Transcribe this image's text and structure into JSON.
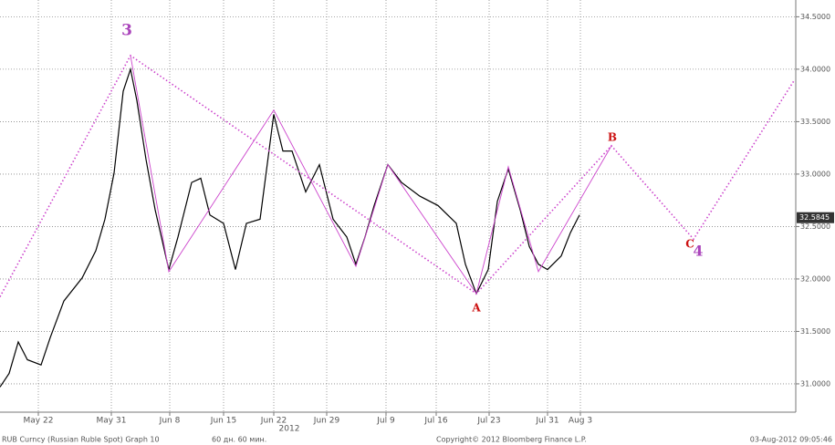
{
  "chart_data": {
    "type": "line",
    "xlim": [
      0,
      872
    ],
    "ylim": [
      30.73,
      34.66
    ],
    "xticks": [
      {
        "value": 42,
        "label": "May 22"
      },
      {
        "value": 122,
        "label": "May 31"
      },
      {
        "value": 186,
        "label": "Jun 8"
      },
      {
        "value": 245,
        "label": "Jun 15"
      },
      {
        "value": 300,
        "label": "Jun 22"
      },
      {
        "value": 358,
        "label": "Jun 29"
      },
      {
        "value": 423,
        "label": "Jul 9"
      },
      {
        "value": 478,
        "label": "Jul 16"
      },
      {
        "value": 536,
        "label": "Jul 23"
      },
      {
        "value": 600,
        "label": "Jul 31"
      },
      {
        "value": 636,
        "label": "Aug 3"
      }
    ],
    "year_label": "2012",
    "yticks": [
      {
        "value": 31.0,
        "label": "31.0000"
      },
      {
        "value": 31.5,
        "label": "31.5000"
      },
      {
        "value": 32.0,
        "label": "32.0000"
      },
      {
        "value": 32.5,
        "label": "32.5000"
      },
      {
        "value": 33.0,
        "label": "33.0000"
      },
      {
        "value": 33.5,
        "label": "33.5000"
      },
      {
        "value": 34.0,
        "label": "34.0000"
      },
      {
        "value": 34.5,
        "label": "34.5000"
      }
    ],
    "grid": true,
    "color": "#000000",
    "x": [
      0,
      10,
      20,
      30,
      45,
      55,
      70,
      90,
      105,
      115,
      125,
      135,
      143,
      150,
      160,
      170,
      185,
      195,
      210,
      220,
      230,
      245,
      258,
      270,
      285,
      300,
      310,
      320,
      335,
      350,
      365,
      380,
      390,
      400,
      410,
      425,
      440,
      460,
      480,
      500,
      510,
      522,
      535,
      545,
      557,
      570,
      580,
      590,
      600,
      615,
      625,
      635
    ],
    "values": [
      30.97,
      31.1,
      31.4,
      31.23,
      31.18,
      31.44,
      31.79,
      32.01,
      32.27,
      32.57,
      33.01,
      33.79,
      34.0,
      33.7,
      33.14,
      32.66,
      32.09,
      32.4,
      32.92,
      32.96,
      32.61,
      32.53,
      32.09,
      32.53,
      32.57,
      33.57,
      33.22,
      33.22,
      32.83,
      33.09,
      32.57,
      32.4,
      32.14,
      32.4,
      32.7,
      33.09,
      32.92,
      32.79,
      32.7,
      32.53,
      32.14,
      31.86,
      32.09,
      32.74,
      33.05,
      32.66,
      32.31,
      32.14,
      32.09,
      32.22,
      32.44,
      32.61
    ],
    "last_price": 32.5845,
    "overlays": [
      {
        "style": "dotted",
        "color": "#cc44cc",
        "x": [
          0,
          143,
          522,
          670,
          760,
          870
        ],
        "values": [
          31.83,
          34.13,
          31.86,
          33.27,
          32.38,
          33.89
        ]
      },
      {
        "style": "solid",
        "color": "#cc44cc",
        "x": [
          143,
          185,
          300,
          390,
          425,
          522,
          557,
          590,
          670
        ],
        "values": [
          34.13,
          32.07,
          33.61,
          32.12,
          33.09,
          31.86,
          33.07,
          32.07,
          33.27
        ]
      }
    ],
    "annotations": [
      "3",
      "A",
      "B",
      "C",
      "4"
    ],
    "footer": {
      "ticker": "RUB Curncy (Russian Ruble Spot) Graph 10",
      "period": "60 дн. 60 мин.",
      "copyright": "Copyright© 2012 Bloomberg Finance L.P.",
      "timestamp": "03-Aug-2012 09:05:46"
    }
  }
}
